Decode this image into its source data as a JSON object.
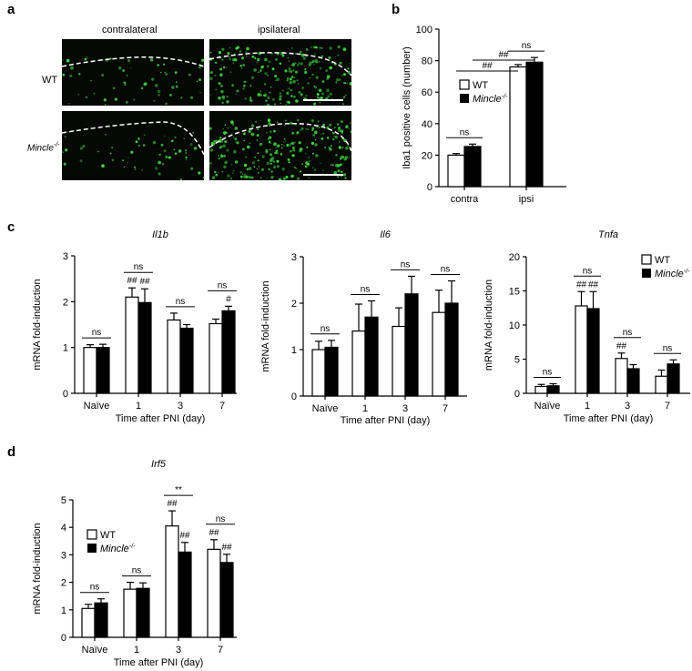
{
  "panels": {
    "a": "a",
    "b": "b",
    "c": "c",
    "d": "d"
  },
  "panel_a": {
    "col_labels": [
      "contralateral",
      "ipsilateral"
    ],
    "row_label_wt": "WT",
    "row_label_mincle": "Mincle",
    "row_label_mincle_sup": "-/-",
    "stain_color": "#3fdc3f"
  },
  "legend": {
    "wt": "WT",
    "mincle": "Mincle",
    "mincle_sup": "-/-"
  },
  "chart_data": [
    {
      "id": "b",
      "type": "bar",
      "categories": [
        "contra",
        "ipsi"
      ],
      "series": [
        {
          "name": "WT",
          "values": [
            20,
            76
          ],
          "errors": [
            1,
            1.5
          ],
          "fill": "#ffffff"
        },
        {
          "name": "Mincle-/-",
          "values": [
            25.5,
            79
          ],
          "errors": [
            1.5,
            3
          ],
          "fill": "#000000"
        }
      ],
      "ylabel": "Iba1 positive cells (number)",
      "ylim": [
        0,
        100
      ],
      "yticks": [
        0,
        20,
        40,
        60,
        80,
        100
      ],
      "yticklabels": [
        "0",
        "20",
        "40",
        "60",
        "80",
        "100"
      ],
      "legend_position": "left",
      "annotations": [
        {
          "text": "ns",
          "type": "pair",
          "cat": 0
        },
        {
          "text": "ns",
          "type": "pair",
          "cat": 1
        },
        {
          "text": "##",
          "type": "span",
          "from": [
            0,
            0
          ],
          "to": [
            1,
            0
          ]
        },
        {
          "text": "##",
          "type": "span",
          "from": [
            0,
            1
          ],
          "to": [
            1,
            1
          ]
        }
      ]
    },
    {
      "id": "c1",
      "type": "bar",
      "title": "Il1b",
      "categories": [
        "Naïve",
        "1",
        "3",
        "7"
      ],
      "series": [
        {
          "name": "WT",
          "values": [
            1.0,
            2.1,
            1.6,
            1.52
          ],
          "errors": [
            0.06,
            0.2,
            0.15,
            0.1
          ],
          "fill": "#ffffff"
        },
        {
          "name": "Mincle-/-",
          "values": [
            1.0,
            1.98,
            1.42,
            1.8
          ],
          "errors": [
            0.07,
            0.3,
            0.08,
            0.1
          ],
          "fill": "#000000"
        }
      ],
      "xlabel": "Time after PNI (day)",
      "ylabel": "mRNA fold-induction",
      "ylim": [
        0,
        3
      ],
      "yticks": [
        0,
        1,
        2,
        3
      ],
      "yticklabels": [
        "0",
        "1",
        "2",
        "3"
      ],
      "annotations": [
        {
          "text": "ns",
          "type": "pair",
          "cat": 0
        },
        {
          "text": "ns",
          "type": "pair",
          "cat": 1
        },
        {
          "text": "ns",
          "type": "pair",
          "cat": 2
        },
        {
          "text": "ns",
          "type": "pair",
          "cat": 3
        },
        {
          "text": "##",
          "type": "bar",
          "cat": 1,
          "series": 0
        },
        {
          "text": "##",
          "type": "bar",
          "cat": 1,
          "series": 1
        },
        {
          "text": "#",
          "type": "bar",
          "cat": 3,
          "series": 1
        }
      ]
    },
    {
      "id": "c2",
      "type": "bar",
      "title": "Il6",
      "categories": [
        "Naïve",
        "1",
        "3",
        "7"
      ],
      "series": [
        {
          "name": "WT",
          "values": [
            1.0,
            1.4,
            1.5,
            1.8
          ],
          "errors": [
            0.18,
            0.58,
            0.4,
            0.48
          ],
          "fill": "#ffffff"
        },
        {
          "name": "Mincle-/-",
          "values": [
            1.05,
            1.7,
            2.2,
            2.0
          ],
          "errors": [
            0.15,
            0.35,
            0.38,
            0.48
          ],
          "fill": "#000000"
        }
      ],
      "xlabel": "Time after PNI (day)",
      "ylabel": "mRNA fold-induction",
      "ylim": [
        0,
        3
      ],
      "yticks": [
        0,
        1,
        2,
        3
      ],
      "yticklabels": [
        "0",
        "1",
        "2",
        "3"
      ],
      "annotations": [
        {
          "text": "ns",
          "type": "pair",
          "cat": 0
        },
        {
          "text": "ns",
          "type": "pair",
          "cat": 1
        },
        {
          "text": "ns",
          "type": "pair",
          "cat": 2
        },
        {
          "text": "ns",
          "type": "pair",
          "cat": 3
        }
      ]
    },
    {
      "id": "c3",
      "type": "bar",
      "title": "Tnfa",
      "categories": [
        "Naïve",
        "1",
        "3",
        "7"
      ],
      "series": [
        {
          "name": "WT",
          "values": [
            1.0,
            12.8,
            5.1,
            2.5
          ],
          "errors": [
            0.3,
            2.1,
            0.8,
            0.9
          ],
          "fill": "#ffffff"
        },
        {
          "name": "Mincle-/-",
          "values": [
            1.1,
            12.4,
            3.6,
            4.3
          ],
          "errors": [
            0.3,
            2.5,
            0.6,
            0.6
          ],
          "fill": "#000000"
        }
      ],
      "xlabel": "Time after PNI (day)",
      "ylabel": "mRNA fold-induction",
      "ylim": [
        0,
        20
      ],
      "yticks": [
        0,
        5,
        10,
        15,
        20
      ],
      "yticklabels": [
        "0",
        "5",
        "10",
        "15",
        "20"
      ],
      "legend_position": "top-right",
      "annotations": [
        {
          "text": "ns",
          "type": "pair",
          "cat": 0
        },
        {
          "text": "ns",
          "type": "pair",
          "cat": 1
        },
        {
          "text": "ns",
          "type": "pair",
          "cat": 2
        },
        {
          "text": "ns",
          "type": "pair",
          "cat": 3
        },
        {
          "text": "##",
          "type": "bar",
          "cat": 1,
          "series": 0
        },
        {
          "text": "##",
          "type": "bar",
          "cat": 1,
          "series": 1
        },
        {
          "text": "##",
          "type": "bar",
          "cat": 2,
          "series": 0
        }
      ]
    },
    {
      "id": "d",
      "type": "bar",
      "title": "Irf5",
      "categories": [
        "Naïve",
        "1",
        "3",
        "7"
      ],
      "series": [
        {
          "name": "WT",
          "values": [
            1.05,
            1.75,
            4.05,
            3.2
          ],
          "errors": [
            0.15,
            0.25,
            0.55,
            0.35
          ],
          "fill": "#ffffff"
        },
        {
          "name": "Mincle-/-",
          "values": [
            1.25,
            1.78,
            3.1,
            2.72
          ],
          "errors": [
            0.15,
            0.2,
            0.35,
            0.3
          ],
          "fill": "#000000"
        }
      ],
      "xlabel": "Time after PNI (day)",
      "ylabel": "mRNA fold-induction",
      "ylim": [
        0,
        5
      ],
      "yticks": [
        0,
        1,
        2,
        3,
        4,
        5
      ],
      "yticklabels": [
        "0",
        "1",
        "2",
        "3",
        "4",
        "5"
      ],
      "legend_position": "left",
      "annotations": [
        {
          "text": "ns",
          "type": "pair",
          "cat": 0
        },
        {
          "text": "ns",
          "type": "pair",
          "cat": 1
        },
        {
          "text": "**",
          "type": "pair",
          "cat": 2
        },
        {
          "text": "ns",
          "type": "pair",
          "cat": 3
        },
        {
          "text": "##",
          "type": "bar",
          "cat": 2,
          "series": 0
        },
        {
          "text": "##",
          "type": "bar",
          "cat": 2,
          "series": 1
        },
        {
          "text": "##",
          "type": "bar",
          "cat": 3,
          "series": 0
        },
        {
          "text": "##",
          "type": "bar",
          "cat": 3,
          "series": 1
        }
      ]
    }
  ]
}
